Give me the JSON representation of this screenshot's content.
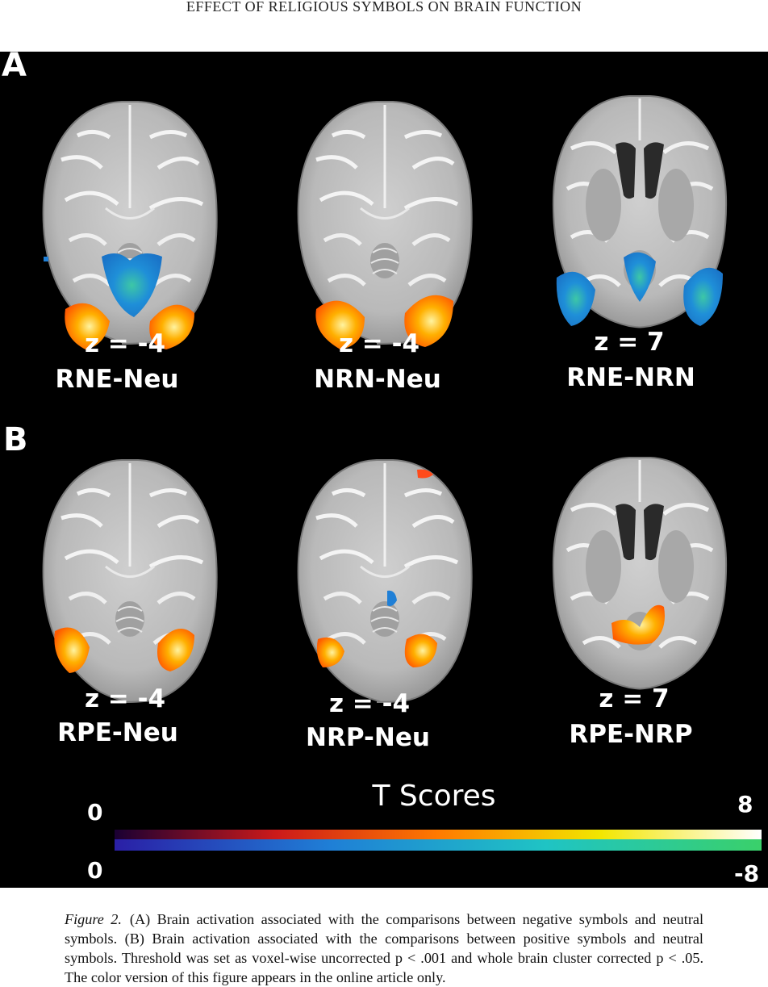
{
  "running_head": "EFFECT OF RELIGIOUS SYMBOLS ON BRAIN FUNCTION",
  "panels": [
    {
      "letter": "A",
      "brains": [
        {
          "z": "z = -4",
          "contrast": "RNE-Neu",
          "slice": "inferior"
        },
        {
          "z": "z = -4",
          "contrast": "NRN-Neu",
          "slice": "inferior"
        },
        {
          "z": "z = 7",
          "contrast": "RNE-NRN",
          "slice": "ventricle"
        }
      ]
    },
    {
      "letter": "B",
      "brains": [
        {
          "z": "z = -4",
          "contrast": "RPE-Neu",
          "slice": "inferior"
        },
        {
          "z": "z = -4",
          "contrast": "NRP-Neu",
          "slice": "inferior"
        },
        {
          "z": "z = 7",
          "contrast": "RPE-NRP",
          "slice": "ventricle"
        }
      ]
    }
  ],
  "colorbar": {
    "title": "T Scores",
    "positive_min": "0",
    "positive_max": "8",
    "negative_min": "0",
    "negative_max": "-8",
    "positive_colors": [
      "#1a0033",
      "#cc1a1a",
      "#ff7a00",
      "#f2e600",
      "#ffffff"
    ],
    "negative_colors": [
      "#2a1fa6",
      "#1f7fd6",
      "#1fc4c4",
      "#3ad06a"
    ]
  },
  "caption": {
    "label": "Figure 2.",
    "text": "(A) Brain activation associated with the comparisons between negative symbols and neutral symbols. (B) Brain activation associated with the comparisons between positive symbols and neutral symbols. Threshold was set as voxel-wise uncorrected p < .001 and whole brain cluster corrected p < .05. The color version of this figure appears in the online article only."
  }
}
